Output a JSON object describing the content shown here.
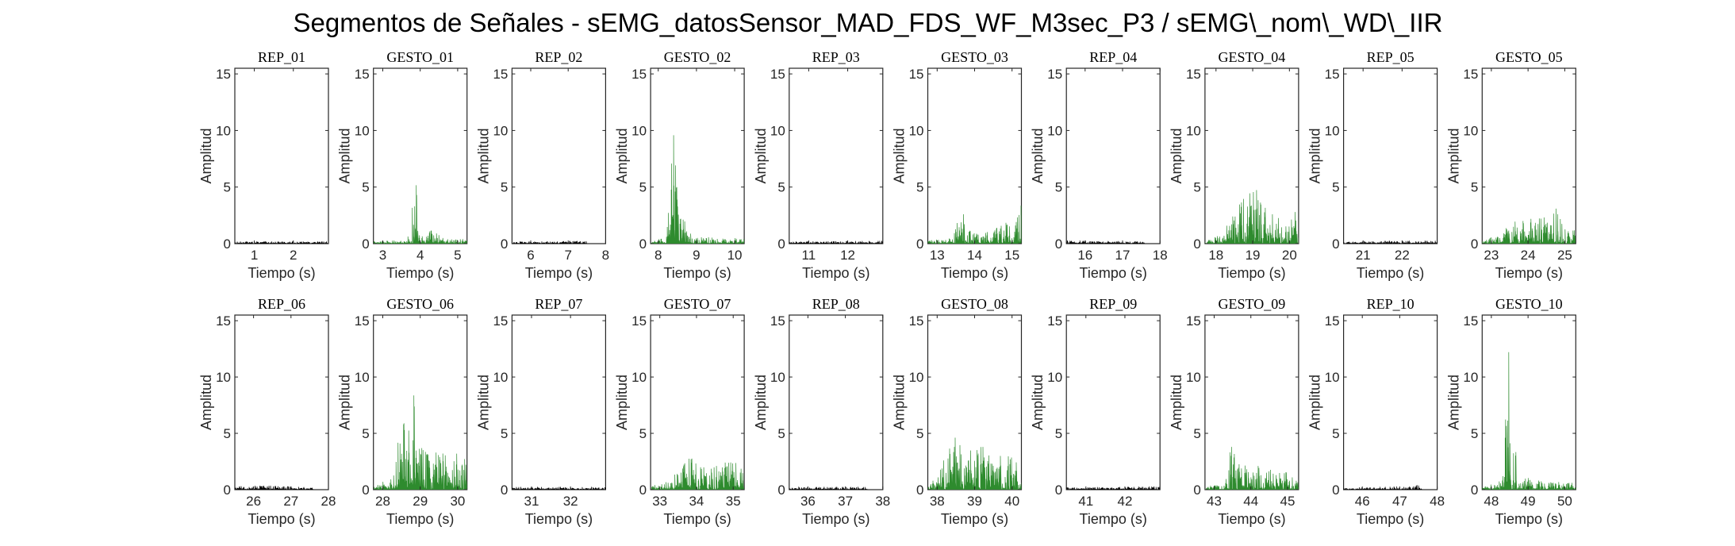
{
  "figure": {
    "title": "Segmentos de Señales - sEMG_datosSensor_MAD_FDS_WF_M3sec_P3 / sEMG\\_nom\\_WD\\_IIR"
  },
  "colors": {
    "rep": "#000000",
    "gesto": "#2e8b2e"
  },
  "chart_data": [
    {
      "type": "line",
      "title": "REP_01",
      "kind": "rep",
      "xlim": [
        0.5,
        2.9
      ],
      "xticks": [
        1,
        2
      ],
      "ylim": [
        0,
        15.5
      ],
      "yticks": [
        0,
        5,
        10,
        15
      ],
      "xlabel": "Tiempo (s)",
      "ylabel": "Amplitud",
      "series": [
        {
          "x_range": [
            0.5,
            2.9
          ],
          "amplitude_profile": [
            [
              0.5,
              0.2
            ],
            [
              2.9,
              0.2
            ]
          ]
        }
      ]
    },
    {
      "type": "line",
      "title": "GESTO_01",
      "kind": "gesto",
      "xlim": [
        2.75,
        5.25
      ],
      "xticks": [
        3,
        4,
        5
      ],
      "ylim": [
        0,
        15.5
      ],
      "yticks": [
        0,
        5,
        10,
        15
      ],
      "xlabel": "Tiempo (s)",
      "ylabel": "Amplitud",
      "series": [
        {
          "x_range": [
            2.75,
            5.25
          ],
          "amplitude_profile": [
            [
              2.75,
              0.25
            ],
            [
              3.6,
              0.3
            ],
            [
              3.75,
              1.5
            ],
            [
              3.8,
              4.2
            ],
            [
              3.88,
              5.5
            ],
            [
              3.95,
              4.0
            ],
            [
              4.05,
              0.8
            ],
            [
              4.3,
              1.2
            ],
            [
              4.6,
              0.6
            ],
            [
              5.25,
              0.4
            ]
          ]
        }
      ]
    },
    {
      "type": "line",
      "title": "REP_02",
      "kind": "rep",
      "xlim": [
        5.5,
        8.0
      ],
      "xticks": [
        6,
        7,
        8
      ],
      "ylim": [
        0,
        15.5
      ],
      "yticks": [
        0,
        5,
        10,
        15
      ],
      "xlabel": "Tiempo (s)",
      "ylabel": "Amplitud",
      "series": [
        {
          "x_range": [
            5.5,
            7.5
          ],
          "amplitude_profile": [
            [
              5.5,
              0.2
            ],
            [
              7.5,
              0.25
            ]
          ]
        }
      ]
    },
    {
      "type": "line",
      "title": "GESTO_02",
      "kind": "gesto",
      "xlim": [
        7.8,
        10.25
      ],
      "xticks": [
        8,
        9,
        10
      ],
      "ylim": [
        0,
        15.5
      ],
      "yticks": [
        0,
        5,
        10,
        15
      ],
      "xlabel": "Tiempo (s)",
      "ylabel": "Amplitud",
      "series": [
        {
          "x_range": [
            7.8,
            10.25
          ],
          "amplitude_profile": [
            [
              7.8,
              0.3
            ],
            [
              8.2,
              0.5
            ],
            [
              8.3,
              4.0
            ],
            [
              8.4,
              11.2
            ],
            [
              8.5,
              6.0
            ],
            [
              8.6,
              3.2
            ],
            [
              8.8,
              1.2
            ],
            [
              9.0,
              0.6
            ],
            [
              10.25,
              0.5
            ]
          ]
        }
      ]
    },
    {
      "type": "line",
      "title": "REP_03",
      "kind": "rep",
      "xlim": [
        10.5,
        12.9
      ],
      "xticks": [
        11,
        12
      ],
      "ylim": [
        0,
        15.5
      ],
      "yticks": [
        0,
        5,
        10,
        15
      ],
      "xlabel": "Tiempo (s)",
      "ylabel": "Amplitud",
      "series": [
        {
          "x_range": [
            10.5,
            12.9
          ],
          "amplitude_profile": [
            [
              10.5,
              0.2
            ],
            [
              12.9,
              0.25
            ]
          ]
        }
      ]
    },
    {
      "type": "line",
      "title": "GESTO_03",
      "kind": "gesto",
      "xlim": [
        12.75,
        15.25
      ],
      "xticks": [
        13,
        14,
        15
      ],
      "ylim": [
        0,
        15.5
      ],
      "yticks": [
        0,
        5,
        10,
        15
      ],
      "xlabel": "Tiempo (s)",
      "ylabel": "Amplitud",
      "series": [
        {
          "x_range": [
            12.75,
            15.25
          ],
          "amplitude_profile": [
            [
              12.75,
              0.3
            ],
            [
              13.4,
              0.5
            ],
            [
              13.55,
              2.8
            ],
            [
              13.65,
              4.5
            ],
            [
              13.8,
              1.5
            ],
            [
              14.2,
              0.7
            ],
            [
              14.9,
              2.5
            ],
            [
              15.0,
              0.8
            ],
            [
              15.25,
              3.6
            ]
          ]
        }
      ]
    },
    {
      "type": "line",
      "title": "REP_04",
      "kind": "rep",
      "xlim": [
        15.5,
        18.0
      ],
      "xticks": [
        16,
        17,
        18
      ],
      "ylim": [
        0,
        15.5
      ],
      "yticks": [
        0,
        5,
        10,
        15
      ],
      "xlabel": "Tiempo (s)",
      "ylabel": "Amplitud",
      "series": [
        {
          "x_range": [
            15.5,
            17.6
          ],
          "amplitude_profile": [
            [
              15.5,
              0.3
            ],
            [
              17.6,
              0.2
            ]
          ]
        }
      ]
    },
    {
      "type": "line",
      "title": "GESTO_04",
      "kind": "gesto",
      "xlim": [
        17.7,
        20.25
      ],
      "xticks": [
        18,
        19,
        20
      ],
      "ylim": [
        0,
        15.5
      ],
      "yticks": [
        0,
        5,
        10,
        15
      ],
      "xlabel": "Tiempo (s)",
      "ylabel": "Amplitud",
      "series": [
        {
          "x_range": [
            17.7,
            20.25
          ],
          "amplitude_profile": [
            [
              17.7,
              0.3
            ],
            [
              18.2,
              1.0
            ],
            [
              18.5,
              3.0
            ],
            [
              18.8,
              4.5
            ],
            [
              19.0,
              6.4
            ],
            [
              19.3,
              4.0
            ],
            [
              19.6,
              2.5
            ],
            [
              20.0,
              1.8
            ],
            [
              20.2,
              3.6
            ],
            [
              20.25,
              2.0
            ]
          ]
        }
      ]
    },
    {
      "type": "line",
      "title": "REP_05",
      "kind": "rep",
      "xlim": [
        20.5,
        22.9
      ],
      "xticks": [
        21,
        22
      ],
      "ylim": [
        0,
        15.5
      ],
      "yticks": [
        0,
        5,
        10,
        15
      ],
      "xlabel": "Tiempo (s)",
      "ylabel": "Amplitud",
      "series": [
        {
          "x_range": [
            20.5,
            22.9
          ],
          "amplitude_profile": [
            [
              20.5,
              0.2
            ],
            [
              22.9,
              0.3
            ]
          ]
        }
      ]
    },
    {
      "type": "line",
      "title": "GESTO_05",
      "kind": "gesto",
      "xlim": [
        22.75,
        25.3
      ],
      "xticks": [
        23,
        24,
        25
      ],
      "ylim": [
        0,
        15.5
      ],
      "yticks": [
        0,
        5,
        10,
        15
      ],
      "xlabel": "Tiempo (s)",
      "ylabel": "Amplitud",
      "series": [
        {
          "x_range": [
            22.75,
            25.3
          ],
          "amplitude_profile": [
            [
              22.75,
              0.3
            ],
            [
              23.2,
              0.8
            ],
            [
              23.6,
              2.0
            ],
            [
              24.0,
              2.2
            ],
            [
              24.5,
              2.6
            ],
            [
              24.8,
              3.2
            ],
            [
              25.0,
              1.5
            ],
            [
              25.3,
              1.2
            ]
          ]
        }
      ]
    },
    {
      "type": "line",
      "title": "REP_06",
      "kind": "rep",
      "xlim": [
        25.5,
        28.0
      ],
      "xticks": [
        26,
        27,
        28
      ],
      "ylim": [
        0,
        15.5
      ],
      "yticks": [
        0,
        5,
        10,
        15
      ],
      "xlabel": "Tiempo (s)",
      "ylabel": "Amplitud",
      "series": [
        {
          "x_range": [
            25.5,
            27.6
          ],
          "amplitude_profile": [
            [
              25.5,
              0.3
            ],
            [
              26.3,
              0.4
            ],
            [
              27.6,
              0.2
            ]
          ]
        }
      ]
    },
    {
      "type": "line",
      "title": "GESTO_06",
      "kind": "gesto",
      "xlim": [
        27.75,
        30.25
      ],
      "xticks": [
        28,
        29,
        30
      ],
      "ylim": [
        0,
        15.5
      ],
      "yticks": [
        0,
        5,
        10,
        15
      ],
      "xlabel": "Tiempo (s)",
      "ylabel": "Amplitud",
      "series": [
        {
          "x_range": [
            27.75,
            30.25
          ],
          "amplitude_profile": [
            [
              27.75,
              0.2
            ],
            [
              28.3,
              1.5
            ],
            [
              28.5,
              6.5
            ],
            [
              28.7,
              5.5
            ],
            [
              28.85,
              8.8
            ],
            [
              29.0,
              4.0
            ],
            [
              29.4,
              3.5
            ],
            [
              29.8,
              3.2
            ],
            [
              30.1,
              4.0
            ],
            [
              30.25,
              3.0
            ]
          ]
        }
      ]
    },
    {
      "type": "line",
      "title": "REP_07",
      "kind": "rep",
      "xlim": [
        30.5,
        32.9
      ],
      "xticks": [
        31,
        32
      ],
      "ylim": [
        0,
        15.5
      ],
      "yticks": [
        0,
        5,
        10,
        15
      ],
      "xlabel": "Tiempo (s)",
      "ylabel": "Amplitud",
      "series": [
        {
          "x_range": [
            30.5,
            32.9
          ],
          "amplitude_profile": [
            [
              30.5,
              0.25
            ],
            [
              32.9,
              0.25
            ]
          ]
        }
      ]
    },
    {
      "type": "line",
      "title": "GESTO_07",
      "kind": "gesto",
      "xlim": [
        32.75,
        35.3
      ],
      "xticks": [
        33,
        34,
        35
      ],
      "ylim": [
        0,
        15.5
      ],
      "yticks": [
        0,
        5,
        10,
        15
      ],
      "xlabel": "Tiempo (s)",
      "ylabel": "Amplitud",
      "series": [
        {
          "x_range": [
            32.75,
            35.3
          ],
          "amplitude_profile": [
            [
              32.75,
              0.3
            ],
            [
              33.3,
              0.8
            ],
            [
              33.6,
              2.5
            ],
            [
              33.75,
              4.8
            ],
            [
              33.9,
              2.5
            ],
            [
              34.3,
              2.2
            ],
            [
              34.8,
              2.6
            ],
            [
              35.1,
              2.4
            ],
            [
              35.3,
              2.0
            ]
          ]
        }
      ]
    },
    {
      "type": "line",
      "title": "REP_08",
      "kind": "rep",
      "xlim": [
        35.5,
        38.0
      ],
      "xticks": [
        36,
        37,
        38
      ],
      "ylim": [
        0,
        15.5
      ],
      "yticks": [
        0,
        5,
        10,
        15
      ],
      "xlabel": "Tiempo (s)",
      "ylabel": "Amplitud",
      "series": [
        {
          "x_range": [
            35.5,
            37.6
          ],
          "amplitude_profile": [
            [
              35.5,
              0.3
            ],
            [
              37.6,
              0.25
            ]
          ]
        }
      ]
    },
    {
      "type": "line",
      "title": "GESTO_08",
      "kind": "gesto",
      "xlim": [
        37.75,
        40.25
      ],
      "xticks": [
        38,
        39,
        40
      ],
      "ylim": [
        0,
        15.5
      ],
      "yticks": [
        0,
        5,
        10,
        15
      ],
      "xlabel": "Tiempo (s)",
      "ylabel": "Amplitud",
      "series": [
        {
          "x_range": [
            37.75,
            40.25
          ],
          "amplitude_profile": [
            [
              37.75,
              0.3
            ],
            [
              38.1,
              2.0
            ],
            [
              38.3,
              4.9
            ],
            [
              38.6,
              4.5
            ],
            [
              38.9,
              3.5
            ],
            [
              39.2,
              4.2
            ],
            [
              39.5,
              3.2
            ],
            [
              39.9,
              3.0
            ],
            [
              40.25,
              2.5
            ]
          ]
        }
      ]
    },
    {
      "type": "line",
      "title": "REP_09",
      "kind": "rep",
      "xlim": [
        40.5,
        42.9
      ],
      "xticks": [
        41,
        42
      ],
      "ylim": [
        0,
        15.5
      ],
      "yticks": [
        0,
        5,
        10,
        15
      ],
      "xlabel": "Tiempo (s)",
      "ylabel": "Amplitud",
      "series": [
        {
          "x_range": [
            40.5,
            42.9
          ],
          "amplitude_profile": [
            [
              40.5,
              0.2
            ],
            [
              42.9,
              0.3
            ]
          ]
        }
      ]
    },
    {
      "type": "line",
      "title": "GESTO_09",
      "kind": "gesto",
      "xlim": [
        42.75,
        45.3
      ],
      "xticks": [
        43,
        44,
        45
      ],
      "ylim": [
        0,
        15.5
      ],
      "yticks": [
        0,
        5,
        10,
        15
      ],
      "xlabel": "Tiempo (s)",
      "ylabel": "Amplitud",
      "series": [
        {
          "x_range": [
            42.75,
            45.3
          ],
          "amplitude_profile": [
            [
              42.75,
              0.3
            ],
            [
              43.3,
              0.5
            ],
            [
              43.5,
              5.1
            ],
            [
              43.6,
              2.5
            ],
            [
              44.0,
              2.3
            ],
            [
              44.5,
              2.0
            ],
            [
              45.0,
              1.5
            ],
            [
              45.3,
              1.0
            ]
          ]
        }
      ]
    },
    {
      "type": "line",
      "title": "REP_10",
      "kind": "rep",
      "xlim": [
        45.5,
        48.0
      ],
      "xticks": [
        46,
        47,
        48
      ],
      "ylim": [
        0,
        15.5
      ],
      "yticks": [
        0,
        5,
        10,
        15
      ],
      "xlabel": "Tiempo (s)",
      "ylabel": "Amplitud",
      "series": [
        {
          "x_range": [
            45.5,
            47.6
          ],
          "amplitude_profile": [
            [
              45.5,
              0.2
            ],
            [
              47.2,
              0.3
            ],
            [
              47.6,
              0.5
            ]
          ]
        }
      ]
    },
    {
      "type": "line",
      "title": "GESTO_10",
      "kind": "gesto",
      "xlim": [
        47.75,
        50.3
      ],
      "xticks": [
        48,
        49,
        50
      ],
      "ylim": [
        0,
        15.5
      ],
      "yticks": [
        0,
        5,
        10,
        15
      ],
      "xlabel": "Tiempo (s)",
      "ylabel": "Amplitud",
      "series": [
        {
          "x_range": [
            47.75,
            50.3
          ],
          "amplitude_profile": [
            [
              47.75,
              0.3
            ],
            [
              48.2,
              0.6
            ],
            [
              48.35,
              3.0
            ],
            [
              48.45,
              15.5
            ],
            [
              48.5,
              12.2
            ],
            [
              48.6,
              4.5
            ],
            [
              48.8,
              1.2
            ],
            [
              49.4,
              0.8
            ],
            [
              50.3,
              0.6
            ]
          ]
        }
      ]
    }
  ]
}
